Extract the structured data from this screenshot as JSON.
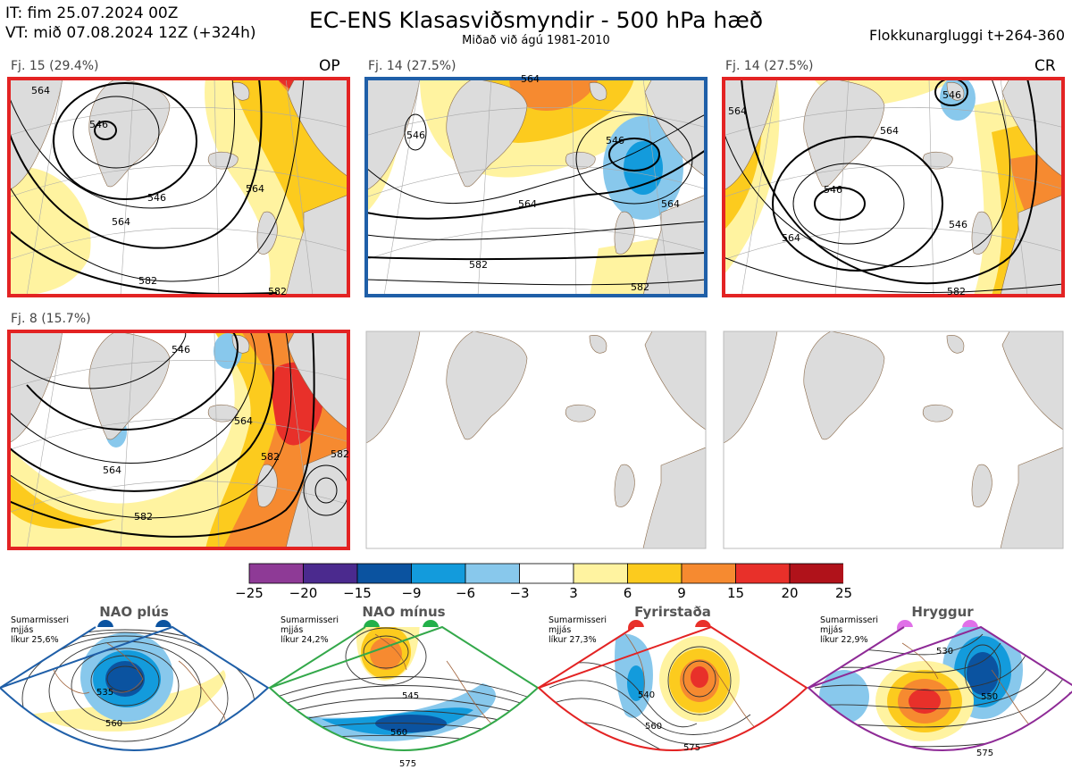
{
  "header": {
    "init_line": "IT: fim 25.07.2024 00Z",
    "valid_line": "VT: mið 07.08.2024 12Z  (+324h)",
    "title": "EC-ENS Klasasviðsmyndir - 500 hPa hæð",
    "subtitle": "Miðað við ágú 1981-2010",
    "window": "Flokkunargluggi t+264-360"
  },
  "panels": [
    {
      "label": "Fj. 15 (29.4%)",
      "tag": "OP",
      "frame_color": "#e32323",
      "contour_labels": [
        "564",
        "546",
        "564",
        "582",
        "582",
        "546",
        "564"
      ]
    },
    {
      "label": "Fj. 14 (27.5%)",
      "tag": "",
      "frame_color": "#1f5fa8",
      "contour_labels": [
        "564",
        "546",
        "564",
        "582",
        "582",
        "564",
        "546"
      ]
    },
    {
      "label": "Fj. 14 (27.5%)",
      "tag": "CR",
      "frame_color": "#e32323",
      "contour_labels": [
        "564",
        "546",
        "564",
        "582",
        "546",
        "564",
        "546"
      ]
    },
    {
      "label": "Fj. 8 (15.7%)",
      "tag": "",
      "frame_color": "#e32323",
      "contour_labels": [
        "564",
        "582",
        "564",
        "582",
        "582",
        "546"
      ]
    },
    {
      "label": "",
      "tag": "",
      "frame_color": "",
      "contour_labels": []
    },
    {
      "label": "",
      "tag": "",
      "frame_color": "",
      "contour_labels": []
    }
  ],
  "colorbar": {
    "colors": [
      "#8e3a96",
      "#4b2a8e",
      "#0b53a0",
      "#139bdc",
      "#88c8ec",
      "#ffffff",
      "#fff3a0",
      "#fccb1e",
      "#f68a30",
      "#e8302a",
      "#b0121a"
    ],
    "ticks": [
      "−25",
      "−20",
      "−15",
      "−9",
      "−6",
      "−3",
      "3",
      "6",
      "9",
      "15",
      "20",
      "25"
    ]
  },
  "regimes": [
    {
      "title": "NAO plús",
      "note_lines": [
        "Sumarmisseri",
        "mjjás",
        "líkur 25,6%"
      ],
      "frame_color": "#1f5fa8",
      "dot_color": "#0b53a0",
      "contour_labels": [
        "535",
        "560"
      ]
    },
    {
      "title": "NAO mínus",
      "note_lines": [
        "Sumarmisseri",
        "mjjás",
        "líkur 24,2%"
      ],
      "frame_color": "#33a84a",
      "dot_color": "#22b04a",
      "contour_labels": [
        "545",
        "560",
        "575"
      ]
    },
    {
      "title": "Fyrirstaða",
      "note_lines": [
        "Sumarmisseri",
        "mjjás",
        "líkur 27,3%"
      ],
      "frame_color": "#e32323",
      "dot_color": "#e8302a",
      "contour_labels": [
        "540",
        "560",
        "575"
      ]
    },
    {
      "title": "Hryggur",
      "note_lines": [
        "Sumarmisseri",
        "mjjás",
        "líkur 22,9%"
      ],
      "frame_color": "#8e2a96",
      "dot_color": "#e070e8",
      "contour_labels": [
        "530",
        "550",
        "575"
      ]
    }
  ]
}
